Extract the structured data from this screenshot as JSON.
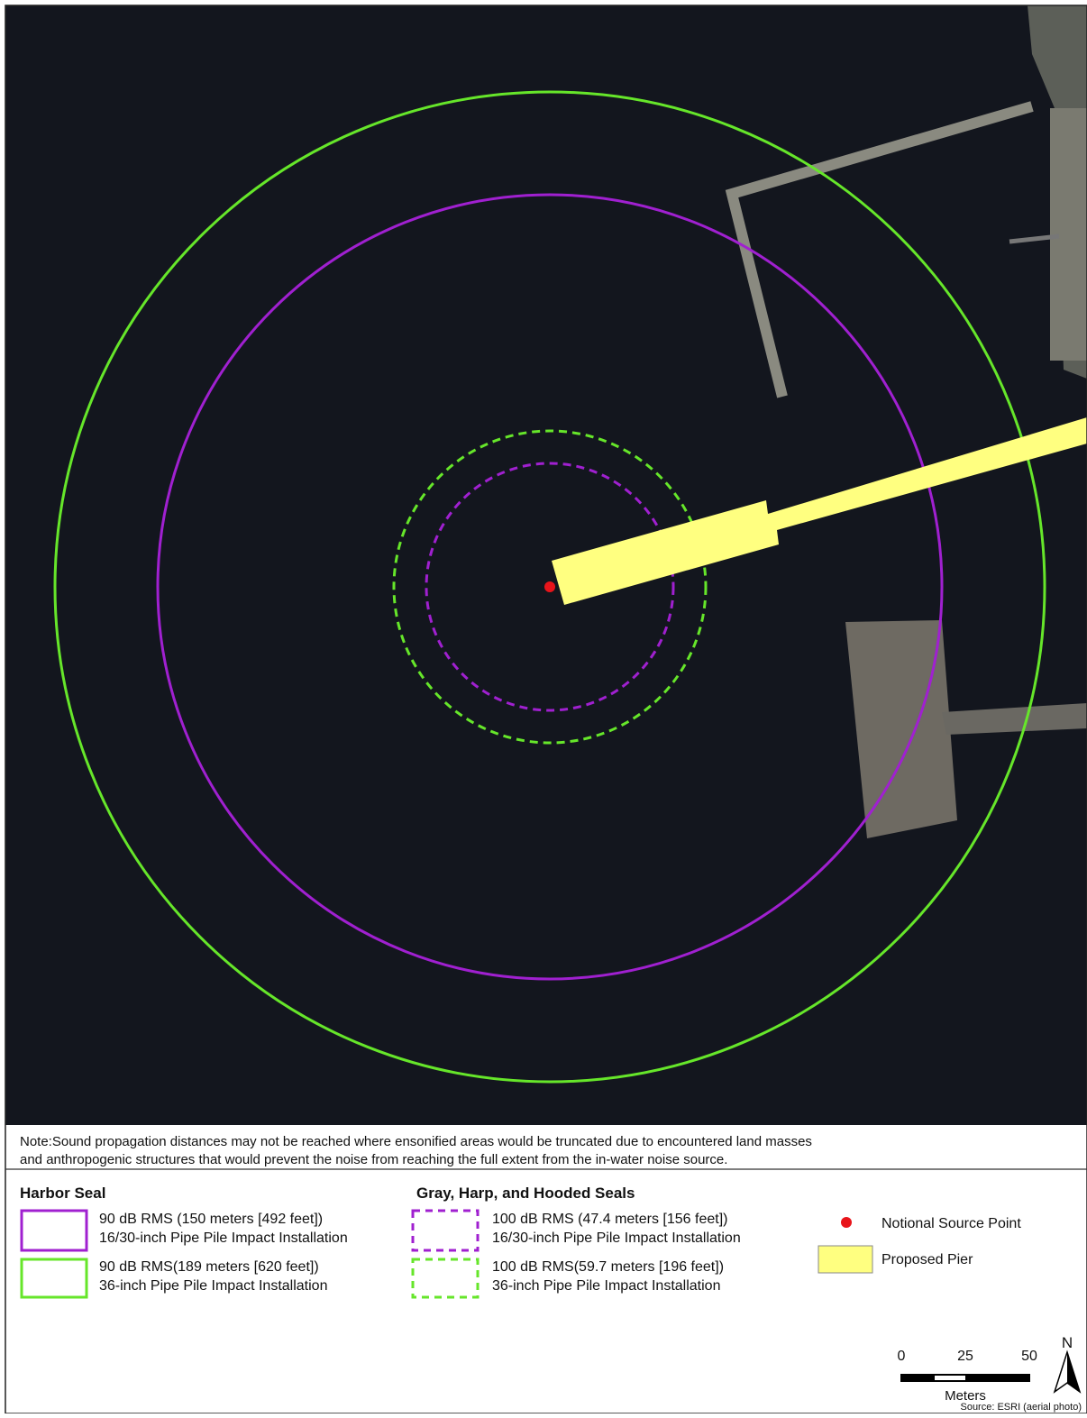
{
  "note": {
    "lines": [
      "Note:Sound propagation distances may not be reached where ensonified areas would be truncated due to encountered land masses",
      "and anthropogenic structures that would prevent the noise from reaching the full extent from the in-water noise source."
    ]
  },
  "legend": {
    "groups": [
      {
        "title": "Harbor Seal",
        "items": [
          {
            "lines": [
              "90 dB RMS (150 meters [492 feet])",
              "16/30-inch Pipe Pile Impact Installation"
            ]
          },
          {
            "lines": [
              "90 dB RMS(189 meters [620 feet])",
              "36-inch Pipe Pile Impact Installation"
            ]
          }
        ]
      },
      {
        "title": "Gray, Harp, and Hooded Seals",
        "items": [
          {
            "lines": [
              "100 dB RMS (47.4 meters [156 feet])",
              "16/30-inch Pipe Pile Impact Installation"
            ]
          },
          {
            "lines": [
              "100 dB RMS(59.7 meters [196 feet])",
              "36-inch Pipe Pile Impact Installation"
            ]
          }
        ]
      }
    ],
    "others": [
      "Notional Source Point",
      "Proposed Pier"
    ]
  },
  "scale_bar": {
    "ticks": [
      "0",
      "25",
      "50"
    ],
    "unit": "Meters"
  },
  "north_arrow": "N",
  "source": "Source: ESRI (aerial photo)"
}
